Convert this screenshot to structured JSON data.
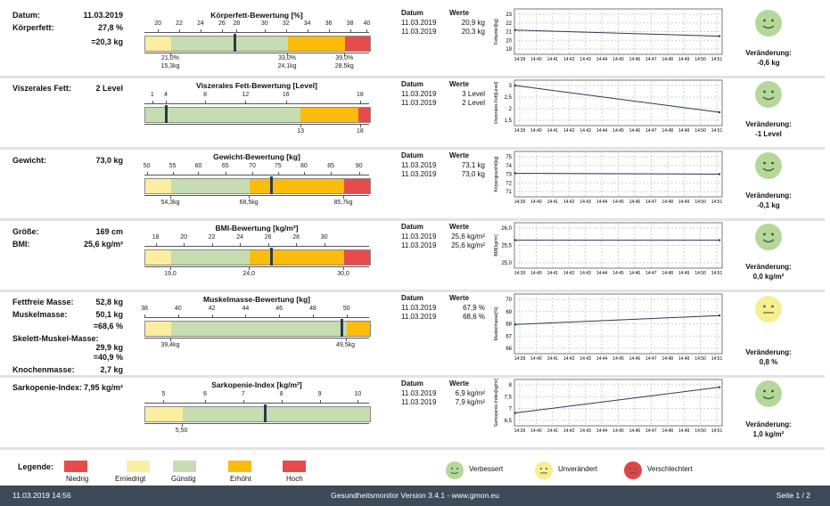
{
  "colors": {
    "low": "#e84b4b",
    "reduced": "#fbeea0",
    "favorable": "#c5ddb0",
    "elevated": "#fbbc0c",
    "high": "#e84b4b",
    "bg_band": "#3d4a57",
    "improved": "#b5d89a",
    "unchanged": "#f6ef91",
    "worse": "#e04545"
  },
  "sections": [
    {
      "labels": [
        {
          "text": "Datum:",
          "value": "11.03.2019"
        },
        {
          "text": "Körperfett:",
          "value": "27,8 %"
        },
        {
          "text": "",
          "value": "=20,3 kg"
        }
      ],
      "bar_title": "Körperfett-Bewertung [%]",
      "ticks": [
        "20",
        "22",
        "24",
        "26",
        "28",
        "30",
        "32",
        "34",
        "36",
        "38",
        "40"
      ],
      "boundaries": [
        {
          "top": "21,0%",
          "bottom": "15,3kg"
        },
        {
          "top": "33,0%",
          "bottom": "24,1kg"
        },
        {
          "top": "39,0%",
          "bottom": "28,5kg"
        }
      ],
      "history_header": [
        "Datum",
        "Werte"
      ],
      "history": [
        [
          "11.03.2019",
          "20,9 kg"
        ],
        [
          "11.03.2019",
          "20,3 kg"
        ]
      ],
      "y_label": "Fettanteil[kg]",
      "y_ticks": [
        "23",
        "22",
        "21",
        "20",
        "19"
      ],
      "x_ticks": [
        "14:39",
        "14:40",
        "14:41",
        "14:42",
        "14:43",
        "14:44",
        "14:45",
        "14:46",
        "14:47",
        "14:48",
        "14:49",
        "14:50",
        "14:51"
      ],
      "series": [
        20.9,
        20.3
      ],
      "ylim": [
        18.5,
        23
      ],
      "face": "improved",
      "change_label": "Veränderung:",
      "change": "-0,6 kg"
    },
    {
      "labels": [
        {
          "text": "Viszerales Fett:",
          "value": "2 Level"
        }
      ],
      "bar_title": "Viszerales Fett-Bewertung [Level]",
      "ticks": [
        "1",
        "4",
        "8",
        "12",
        "16",
        "18"
      ],
      "boundaries": [
        {
          "top": "",
          "bottom": "13"
        },
        {
          "top": "",
          "bottom": "18"
        }
      ],
      "history_header": [
        "Datum",
        "Werte"
      ],
      "history": [
        [
          "11.03.2019",
          "3 Level"
        ],
        [
          "11.03.2019",
          "2 Level"
        ]
      ],
      "y_label": "Viszerales Fett[Level]",
      "y_ticks": [
        "3",
        "2,5",
        "2",
        "1,5"
      ],
      "x_ticks": [
        "14:39",
        "14:40",
        "14:41",
        "14:42",
        "14:43",
        "14:44",
        "14:45",
        "14:46",
        "14:47",
        "14:48",
        "14:49",
        "14:50",
        "14:51"
      ],
      "series": [
        3,
        2
      ],
      "ylim": [
        1.5,
        3.2
      ],
      "face": "improved",
      "change_label": "Veränderung:",
      "change": "-1 Level"
    },
    {
      "labels": [
        {
          "text": "Gewicht:",
          "value": "73,0 kg"
        }
      ],
      "bar_title": "Gewicht-Bewertung [kg]",
      "ticks": [
        "50",
        "55",
        "60",
        "65",
        "70",
        "75",
        "80",
        "85",
        "90"
      ],
      "boundaries": [
        {
          "top": "",
          "bottom": "54,3kg"
        },
        {
          "top": "",
          "bottom": "68,5kg"
        },
        {
          "top": "",
          "bottom": "85,7kg"
        }
      ],
      "history_header": [
        "Datum",
        "Werte"
      ],
      "history": [
        [
          "11.03.2019",
          "73,1 kg"
        ],
        [
          "11.03.2019",
          "73,0 kg"
        ]
      ],
      "y_label": "Körpergewicht[kg]",
      "y_ticks": [
        "75",
        "74",
        "73",
        "72",
        "71"
      ],
      "x_ticks": [
        "14:39",
        "14:40",
        "14:41",
        "14:42",
        "14:43",
        "14:44",
        "14:45",
        "14:46",
        "14:47",
        "14:48",
        "14:49",
        "14:50",
        "14:51"
      ],
      "series": [
        73.1,
        73.0
      ],
      "ylim": [
        70.6,
        75.4
      ],
      "face": "improved",
      "change_label": "Veränderung:",
      "change": "-0,1 kg"
    },
    {
      "labels": [
        {
          "text": "Größe:",
          "value": "169 cm"
        },
        {
          "text": "BMI:",
          "value": "25,6 kg/m²"
        }
      ],
      "bar_title": "BMI-Bewertung [kg/m²]",
      "ticks": [
        "18",
        "20",
        "22",
        "24",
        "26",
        "28",
        "30"
      ],
      "boundaries": [
        {
          "top": "",
          "bottom": "19,0"
        },
        {
          "top": "",
          "bottom": "24,0"
        },
        {
          "top": "",
          "bottom": "30,0"
        }
      ],
      "history_header": [
        "Datum",
        "Werte"
      ],
      "history": [
        [
          "11.03.2019",
          "25,6 kg/m²"
        ],
        [
          "11.03.2019",
          "25,6 kg/m²"
        ]
      ],
      "y_label": "BMI[kg/m²]",
      "y_ticks": [
        "26,0",
        "25,5",
        "25,0"
      ],
      "x_ticks": [
        "14:39",
        "14:40",
        "14:41",
        "14:42",
        "14:43",
        "14:44",
        "14:45",
        "14:46",
        "14:47",
        "14:48",
        "14:49",
        "14:50",
        "14:51"
      ],
      "series": [
        25.6,
        25.6
      ],
      "ylim": [
        24.8,
        26.1
      ],
      "face": "improved",
      "change_label": "Veränderung:",
      "change": "0,0 kg/m²"
    },
    {
      "labels": [
        {
          "text": "Fettfreie Masse:",
          "value": "52,8 kg"
        },
        {
          "text": "Muskelmasse:",
          "value": "50,1 kg"
        },
        {
          "text": "",
          "value": "=68,6 %"
        },
        {
          "text": "Skelett-Muskel-Masse:",
          "value": ""
        },
        {
          "text": "",
          "value": "29,9 kg"
        },
        {
          "text": "",
          "value": "=40,9 %"
        },
        {
          "text": "Knochenmasse:",
          "value": "2,7 kg"
        }
      ],
      "bar_title": "Muskelmasse-Bewertung [kg]",
      "ticks": [
        "38",
        "40",
        "42",
        "44",
        "46",
        "48",
        "50"
      ],
      "boundaries": [
        {
          "top": "",
          "bottom": "39,4kg"
        },
        {
          "top": "",
          "bottom": "49,5kg"
        }
      ],
      "history_header": [
        "Datum",
        "Werte"
      ],
      "history": [
        [
          "11.03.2019",
          "67,9 %"
        ],
        [
          "11.03.2019",
          "68,6 %"
        ]
      ],
      "y_label": "Muskelmasse[%]",
      "y_ticks": [
        "70",
        "69",
        "68",
        "67",
        "66"
      ],
      "x_ticks": [
        "14:39",
        "14:40",
        "14:41",
        "14:42",
        "14:43",
        "14:44",
        "14:45",
        "14:46",
        "14:47",
        "14:48",
        "14:49",
        "14:50",
        "14:51"
      ],
      "series": [
        67.9,
        68.6
      ],
      "ylim": [
        65.6,
        70.3
      ],
      "face": "unchanged",
      "change_label": "Veränderung:",
      "change": "0,8 %"
    },
    {
      "labels": [
        {
          "text": "Sarkopenie-Index:",
          "value": "7,95 kg/m²"
        }
      ],
      "bar_title": "Sarkopenie-Index [kg/m²]",
      "ticks": [
        "5",
        "6",
        "7",
        "8",
        "9",
        "10"
      ],
      "boundaries": [
        {
          "top": "",
          "bottom": "5,50"
        }
      ],
      "history_header": [
        "Datum",
        "Werte"
      ],
      "history": [
        [
          "11.03.2019",
          "6,9 kg/m²"
        ],
        [
          "11.03.2019",
          "7,9 kg/m²"
        ]
      ],
      "y_label": "Sarkopenie-Index[kg/m²]",
      "y_ticks": [
        "8",
        "7,5",
        "7",
        "6,5"
      ],
      "x_ticks": [
        "14:39",
        "14:40",
        "14:41",
        "14:42",
        "14:43",
        "14:44",
        "14:45",
        "14:46",
        "14:47",
        "14:48",
        "14:49",
        "14:50",
        "14:51"
      ],
      "series": [
        6.9,
        7.9
      ],
      "ylim": [
        6.4,
        8.2
      ],
      "face": "improved",
      "change_label": "Veränderung:",
      "change": "1,0 kg/m²"
    }
  ],
  "legend": {
    "title": "Legende:",
    "items": [
      "Niedrig",
      "Erniedrigt",
      "Günstig",
      "Erhöht",
      "Hoch"
    ],
    "faces": [
      "Verbessert",
      "Unverändert",
      "Verschlechtert"
    ]
  },
  "footer": {
    "datetime": "11.03.2019 14:56",
    "center": "Gesundheitsmonitor Version 3.4.1 - www.gmon.eu",
    "page": "Seite 1 / 2"
  }
}
